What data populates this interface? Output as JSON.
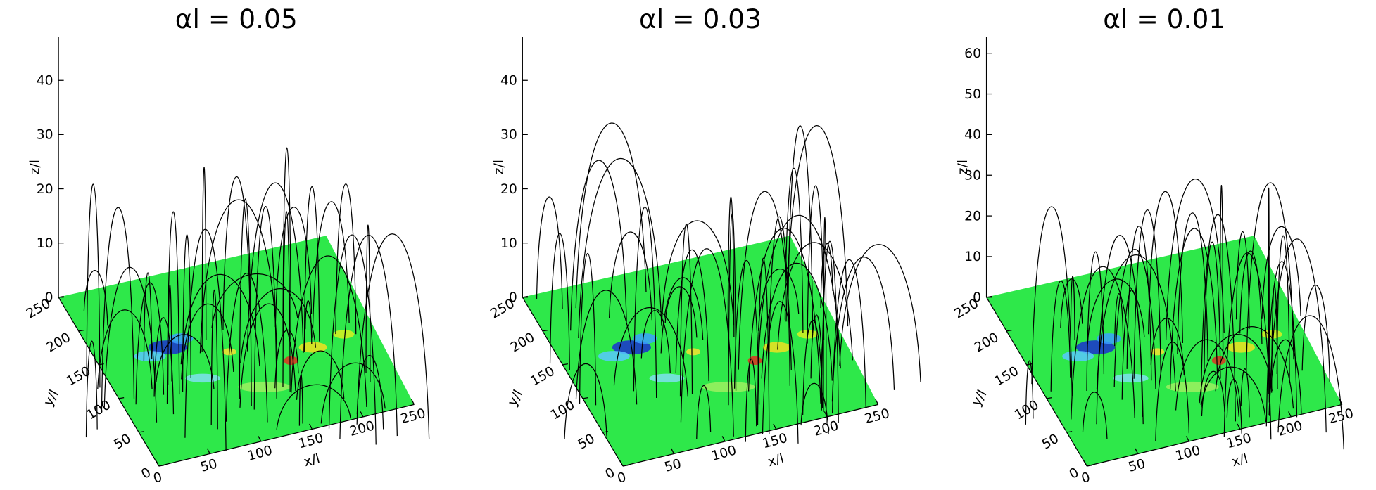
{
  "panels": [
    {
      "title": "αl = 0.05",
      "zlabel": "z/l",
      "ylabel": "y/l",
      "xlabel": "x/l",
      "zlim": [
        0,
        48
      ],
      "zticks": [
        0,
        10,
        20,
        30,
        40
      ],
      "ylim": [
        0,
        250
      ],
      "yticks": [
        0,
        50,
        100,
        150,
        200,
        250
      ],
      "xlim": [
        0,
        250
      ],
      "xticks": [
        0,
        50,
        100,
        150,
        200,
        250
      ]
    },
    {
      "title": "αl = 0.03",
      "zlabel": "z/l",
      "ylabel": "y/l",
      "xlabel": "x/l",
      "zlim": [
        0,
        48
      ],
      "zticks": [
        0,
        10,
        20,
        30,
        40
      ],
      "ylim": [
        0,
        250
      ],
      "yticks": [
        0,
        50,
        100,
        150,
        200,
        250
      ],
      "xlim": [
        0,
        250
      ],
      "xticks": [
        0,
        50,
        100,
        150,
        200,
        250
      ]
    },
    {
      "title": "αl = 0.01",
      "zlabel": "z/l",
      "ylabel": "y/l",
      "xlabel": "x/l",
      "zlim": [
        0,
        64
      ],
      "zticks": [
        0,
        10,
        20,
        30,
        40,
        50,
        60
      ],
      "ylim": [
        0,
        250
      ],
      "yticks": [
        0,
        50,
        100,
        150,
        200,
        250
      ],
      "xlim": [
        0,
        250
      ],
      "xticks": [
        0,
        50,
        100,
        150,
        200,
        250
      ]
    }
  ]
}
